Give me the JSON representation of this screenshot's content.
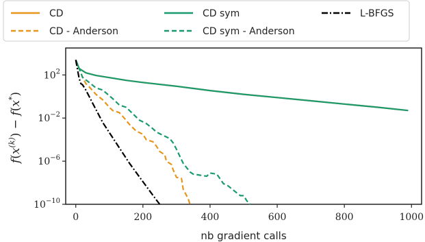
{
  "chart_data": {
    "type": "line",
    "xlabel": "nb gradient calls",
    "ylabel": "f(x^(k)) − f(x*)",
    "xlim": [
      -30,
      1030
    ],
    "ylim_log10": [
      -10,
      4.5
    ],
    "y_scale": "log",
    "grid": false,
    "legend_location": "top, outside plot, 3 columns",
    "x_ticks": [
      "0",
      "200",
      "400",
      "600",
      "800",
      "1000"
    ],
    "x_tick_values": [
      0,
      200,
      400,
      600,
      800,
      1000
    ],
    "y_ticks": [
      {
        "base": "10",
        "exp": "2",
        "log10": 2
      },
      {
        "base": "10",
        "exp": "−2",
        "log10": -2
      },
      {
        "base": "10",
        "exp": "−6",
        "log10": -6
      },
      {
        "base": "10",
        "exp": "−10",
        "log10": -10
      }
    ],
    "series": [
      {
        "name": "CD",
        "color": "#e6961a",
        "style": "solid",
        "x": [
          0,
          10,
          30,
          60,
          100,
          150,
          200,
          300,
          400,
          500,
          600,
          700,
          800,
          900,
          990
        ],
        "log10_y": [
          3.4,
          2.6,
          2.2,
          1.95,
          1.75,
          1.5,
          1.3,
          0.95,
          0.55,
          0.2,
          -0.1,
          -0.4,
          -0.7,
          -1.0,
          -1.3
        ]
      },
      {
        "name": "CD - Anderson",
        "color": "#e6961a",
        "style": "dashed",
        "x": [
          0,
          5,
          10,
          20,
          30,
          40,
          60,
          80,
          100,
          110,
          130,
          150,
          160,
          180,
          200,
          210,
          230,
          240,
          250,
          265,
          270,
          285,
          290,
          300,
          315,
          320,
          335,
          340
        ],
        "log10_y": [
          3.4,
          2.8,
          2.6,
          1.8,
          1.2,
          0.9,
          0.2,
          -0.3,
          -1.0,
          -1.3,
          -1.5,
          -2.2,
          -2.6,
          -3.2,
          -3.5,
          -4.0,
          -4.2,
          -4.6,
          -5.1,
          -5.4,
          -6.0,
          -6.3,
          -6.8,
          -7.5,
          -7.6,
          -8.6,
          -9.5,
          -10.0
        ]
      },
      {
        "name": "CD sym",
        "color": "#1a9a6e",
        "style": "solid",
        "x": [
          0,
          10,
          30,
          60,
          100,
          150,
          200,
          300,
          400,
          500,
          600,
          700,
          800,
          900,
          990
        ],
        "log10_y": [
          3.4,
          2.6,
          2.2,
          1.95,
          1.75,
          1.5,
          1.3,
          0.95,
          0.55,
          0.2,
          -0.1,
          -0.4,
          -0.7,
          -1.0,
          -1.3
        ]
      },
      {
        "name": "CD sym - Anderson",
        "color": "#1a9a6e",
        "style": "dashed",
        "x": [
          0,
          10,
          20,
          40,
          60,
          80,
          110,
          130,
          150,
          170,
          190,
          210,
          230,
          240,
          260,
          280,
          290,
          300,
          320,
          340,
          350,
          370,
          390,
          400,
          420,
          440,
          450,
          470,
          490,
          500,
          510,
          520
        ],
        "log10_y": [
          3.4,
          2.6,
          1.8,
          1.3,
          0.8,
          0.6,
          -0.2,
          -0.8,
          -1.0,
          -1.6,
          -2.2,
          -2.5,
          -3.0,
          -3.3,
          -3.6,
          -3.9,
          -4.3,
          -4.9,
          -6.2,
          -7.0,
          -7.2,
          -7.3,
          -7.4,
          -7.1,
          -7.2,
          -8.1,
          -8.2,
          -8.7,
          -9.2,
          -9.2,
          -9.7,
          -10.0
        ]
      },
      {
        "name": "L-BFGS",
        "color": "#000000",
        "style": "dashdot",
        "x": [
          0,
          5,
          10,
          15,
          20,
          30,
          50,
          80,
          120,
          160,
          200,
          240,
          250
        ],
        "log10_y": [
          3.4,
          2.5,
          1.7,
          1.2,
          1.1,
          0.6,
          -0.6,
          -2.4,
          -4.3,
          -6.2,
          -7.9,
          -9.6,
          -10.0
        ]
      }
    ]
  }
}
